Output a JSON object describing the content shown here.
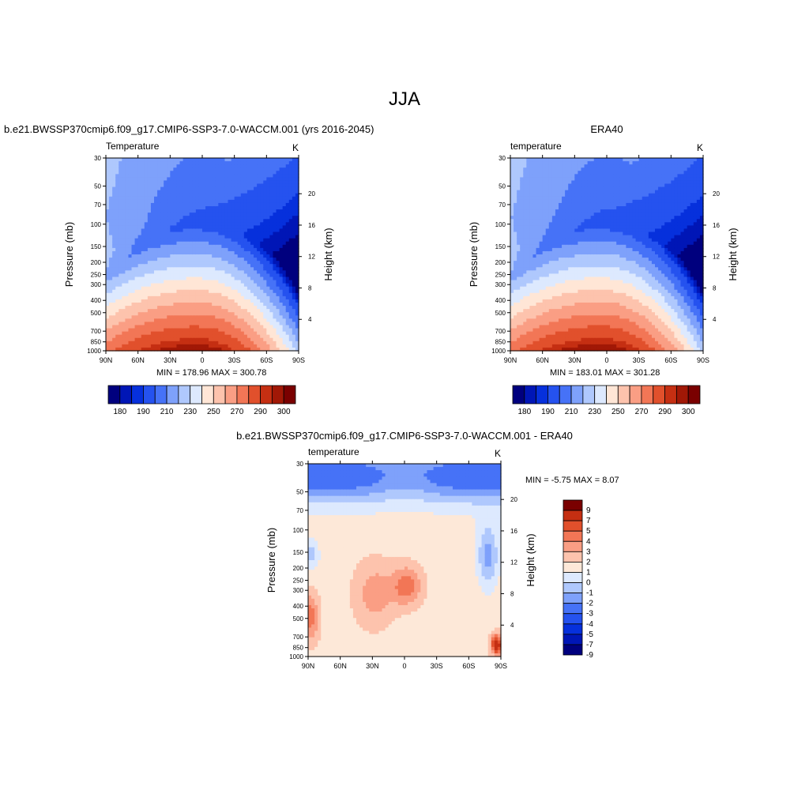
{
  "page_title": "JJA",
  "colors": {
    "abs_scale": [
      "#00007e",
      "#0016b6",
      "#0630dc",
      "#2552ef",
      "#4672f7",
      "#7ea1fb",
      "#afc8fd",
      "#dde9fe",
      "#ffe6d6",
      "#fdc3ad",
      "#fa9e84",
      "#f27656",
      "#e1502c",
      "#c52f12",
      "#a11806",
      "#7a0000"
    ],
    "diff_scale": [
      "#00007e",
      "#0016b6",
      "#0630dc",
      "#2552ef",
      "#4672f7",
      "#7ea1fb",
      "#afc8fd",
      "#dde9fe",
      "#fde8d8",
      "#fdc3ad",
      "#fa9e84",
      "#f27656",
      "#e1502c",
      "#c52f12",
      "#7a0000"
    ]
  },
  "chart_data": [
    {
      "type": "heatmap",
      "title": "b.e21.BWSSP370cmip6.f09_g17.CMIP6-SSP3-7.0-WACCM.001 (yrs 2016-2045)",
      "label_left": "Temperature",
      "units": "K",
      "ylabel": "Pressure (mb)",
      "y2label": "Height (km)",
      "x_ticks": [
        "90N",
        "60N",
        "30N",
        "0",
        "30S",
        "60S",
        "90S"
      ],
      "y_ticks": [
        "30",
        "50",
        "70",
        "100",
        "150",
        "200",
        "250",
        "300",
        "400",
        "500",
        "700",
        "850",
        "1000"
      ],
      "y2_ticks": [
        "20",
        "16",
        "12",
        "8",
        "4"
      ],
      "stats": "MIN = 178.96  MAX = 300.78",
      "colorbar_labels": [
        "180",
        "190",
        "210",
        "230",
        "250",
        "270",
        "290",
        "300"
      ],
      "contour_levels": [
        180,
        185,
        190,
        200,
        210,
        220,
        230,
        240,
        250,
        260,
        270,
        280,
        290,
        295,
        300
      ],
      "field": "model"
    },
    {
      "type": "heatmap",
      "title": "ERA40",
      "label_left": "temperature",
      "units": "K",
      "ylabel": "Pressure (mb)",
      "y2label": "Height (km)",
      "x_ticks": [
        "90N",
        "60N",
        "30N",
        "0",
        "30S",
        "60S",
        "90S"
      ],
      "y_ticks": [
        "30",
        "50",
        "70",
        "100",
        "150",
        "200",
        "250",
        "300",
        "400",
        "500",
        "700",
        "850",
        "1000"
      ],
      "y2_ticks": [
        "20",
        "16",
        "12",
        "8",
        "4"
      ],
      "stats": "MIN = 183.01  MAX = 301.28",
      "colorbar_labels": [
        "180",
        "190",
        "210",
        "230",
        "250",
        "270",
        "290",
        "300"
      ],
      "contour_levels": [
        180,
        185,
        190,
        200,
        210,
        220,
        230,
        240,
        250,
        260,
        270,
        280,
        290,
        295,
        300
      ],
      "field": "obs"
    },
    {
      "type": "heatmap",
      "title": "b.e21.BWSSP370cmip6.f09_g17.CMIP6-SSP3-7.0-WACCM.001 - ERA40",
      "label_left": "temperature",
      "units": "K",
      "ylabel": "Pressure (mb)",
      "y2label": "Height (km)",
      "x_ticks": [
        "90N",
        "60N",
        "30N",
        "0",
        "30S",
        "60S",
        "90S"
      ],
      "y_ticks": [
        "30",
        "50",
        "70",
        "100",
        "150",
        "200",
        "250",
        "300",
        "400",
        "500",
        "700",
        "850",
        "1000"
      ],
      "y2_ticks": [
        "20",
        "16",
        "12",
        "8",
        "4"
      ],
      "stats": "MIN =  -5.75  MAX =   8.07",
      "colorbar_labels": [
        "9",
        "7",
        "5",
        "4",
        "3",
        "2",
        "1",
        "0",
        "-1",
        "-2",
        "-3",
        "-4",
        "-5",
        "-7",
        "-9"
      ],
      "contour_levels": [
        -9,
        -7,
        -5,
        -4,
        -3,
        -2,
        -1,
        0,
        1,
        2,
        3,
        4,
        5,
        7,
        9
      ],
      "field": "diff"
    }
  ]
}
